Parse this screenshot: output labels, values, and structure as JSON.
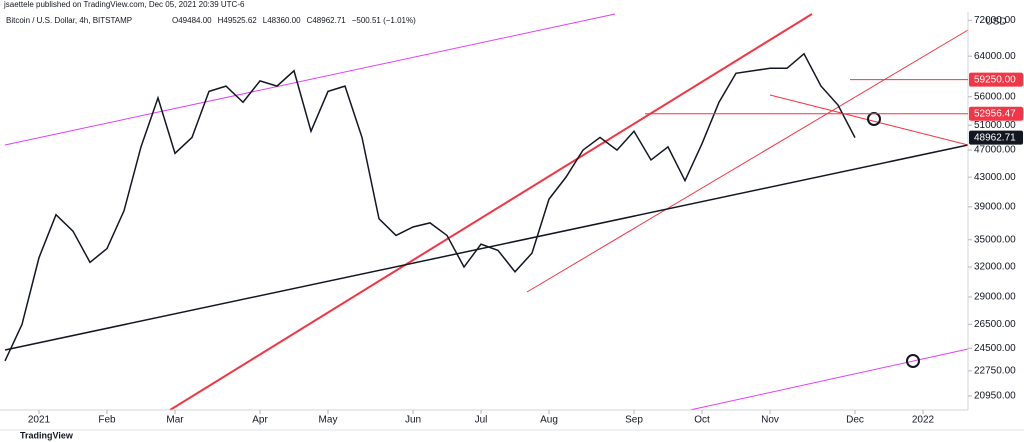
{
  "chart_data": {
    "type": "line",
    "publisher": "jsaettele published on TradingView.com, Dec 05, 2021 20:39 UTC-6",
    "title": "Bitcoin / U.S. Dollar, 4h, BITSTAMP",
    "ohlc": [
      "O49484.00",
      "H49525.62",
      "L48360.00",
      "C48962.71",
      "−500.51 (−1.01%)"
    ],
    "currency": "USD",
    "brand": "TradingView",
    "color": "#131722",
    "log_scale": true,
    "categories": [
      null,
      null,
      "2021",
      null,
      null,
      null,
      "Feb",
      null,
      null,
      null,
      "Mar",
      null,
      null,
      null,
      null,
      "Apr",
      null,
      null,
      null,
      "May",
      null,
      null,
      null,
      null,
      "Jun",
      null,
      null,
      null,
      "Jul",
      null,
      null,
      null,
      "Aug",
      null,
      null,
      null,
      null,
      "Sep",
      null,
      null,
      null,
      "Oct",
      null,
      null,
      null,
      "Nov",
      null,
      null,
      null,
      null,
      "Dec",
      null,
      null,
      null,
      "2022",
      null,
      null
    ],
    "values": [
      23500,
      26500,
      33000,
      38000,
      36000,
      32500,
      34000,
      38500,
      47500,
      55800,
      46500,
      49000,
      57000,
      58000,
      55000,
      59000,
      58000,
      61000,
      50000,
      57000,
      58000,
      49000,
      37500,
      35500,
      36500,
      37000,
      35500,
      32000,
      34500,
      33800,
      31500,
      33500,
      40000,
      43000,
      47000,
      49000,
      47000,
      50000,
      45500,
      47500,
      42500,
      48000,
      55000,
      60500,
      61000,
      61500,
      61500,
      64500,
      58000,
      54500,
      48962.71,
      null,
      null,
      null,
      null,
      null,
      null
    ],
    "ylim": [
      20000,
      74000
    ],
    "yticks": [
      {
        "value": 72000,
        "label": "72000.00"
      },
      {
        "value": 64000,
        "label": "64000.00"
      },
      {
        "value": 56000,
        "label": "56000.00"
      },
      {
        "value": 51000,
        "label": "51000.00"
      },
      {
        "value": 47000,
        "label": "47000.00"
      },
      {
        "value": 43000,
        "label": "43000.00"
      },
      {
        "value": 39000,
        "label": "39000.00"
      },
      {
        "value": 35000,
        "label": "35000.00"
      },
      {
        "value": 32000,
        "label": "32000.00"
      },
      {
        "value": 29000,
        "label": "29000.00"
      },
      {
        "value": 26500,
        "label": "26500.00"
      },
      {
        "value": 24500,
        "label": "24500.00"
      },
      {
        "value": 22750,
        "label": "22750.00"
      },
      {
        "value": 20950,
        "label": "20950.00"
      }
    ],
    "price_lines": [
      {
        "value": 59250,
        "label": "59250.00",
        "color": "#f23645"
      },
      {
        "value": 52956.47,
        "label": "52956.47",
        "color": "#f23645"
      },
      {
        "value": 48962.71,
        "label": "48962.71",
        "color": "#131722"
      }
    ]
  }
}
